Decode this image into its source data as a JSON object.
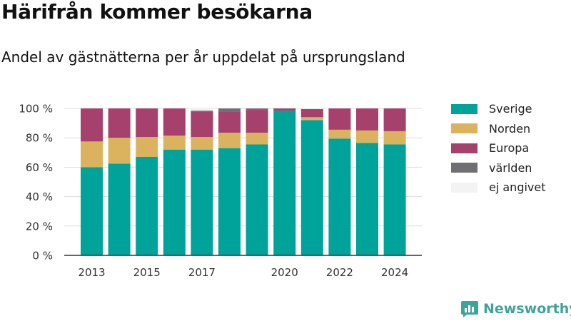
{
  "title": "Härifrån kommer besökarna",
  "subtitle": "Andel av gästnätterna per år uppdelat på ursprungsland",
  "brand": "Newsworthy",
  "chart_data": {
    "type": "bar",
    "stacked": true,
    "categories": [
      "2013",
      "2014",
      "2015",
      "2016",
      "2017",
      "2018",
      "2019",
      "2020",
      "2021",
      "2022",
      "2023",
      "2024"
    ],
    "x_tick_labels": [
      "2013",
      "",
      "2015",
      "",
      "2017",
      "",
      "",
      "2020",
      "",
      "2022",
      "",
      "2024"
    ],
    "y_ticks": [
      "0 %",
      "20 %",
      "40 %",
      "60 %",
      "80 %",
      "100 %"
    ],
    "ylim": [
      0,
      100
    ],
    "grid": true,
    "legend_position": "right",
    "series": [
      {
        "name": "Sverige",
        "color": "#00a39a",
        "values": [
          60,
          62.5,
          67,
          72,
          72,
          73,
          75.5,
          98.5,
          92,
          79.5,
          76.5,
          75.5
        ]
      },
      {
        "name": "Norden",
        "color": "#dbb35e",
        "values": [
          17.5,
          17.5,
          13.5,
          9.5,
          8.5,
          10.5,
          8,
          0,
          2,
          6,
          8.5,
          9
        ]
      },
      {
        "name": "Europa",
        "color": "#a6406c",
        "values": [
          22.5,
          20,
          19.5,
          18.5,
          17.5,
          14.5,
          15.5,
          1.5,
          5.5,
          14.5,
          15,
          15.5
        ]
      },
      {
        "name": "världen",
        "color": "#6e6e73",
        "values": [
          0,
          0,
          0,
          0,
          0.5,
          2,
          1,
          0,
          0,
          0,
          0,
          0
        ]
      },
      {
        "name": "ej angivet",
        "color": "#f3f3f3",
        "values": [
          0,
          0,
          0,
          0,
          1.5,
          0,
          0,
          0,
          0,
          0,
          0,
          0
        ]
      }
    ]
  }
}
